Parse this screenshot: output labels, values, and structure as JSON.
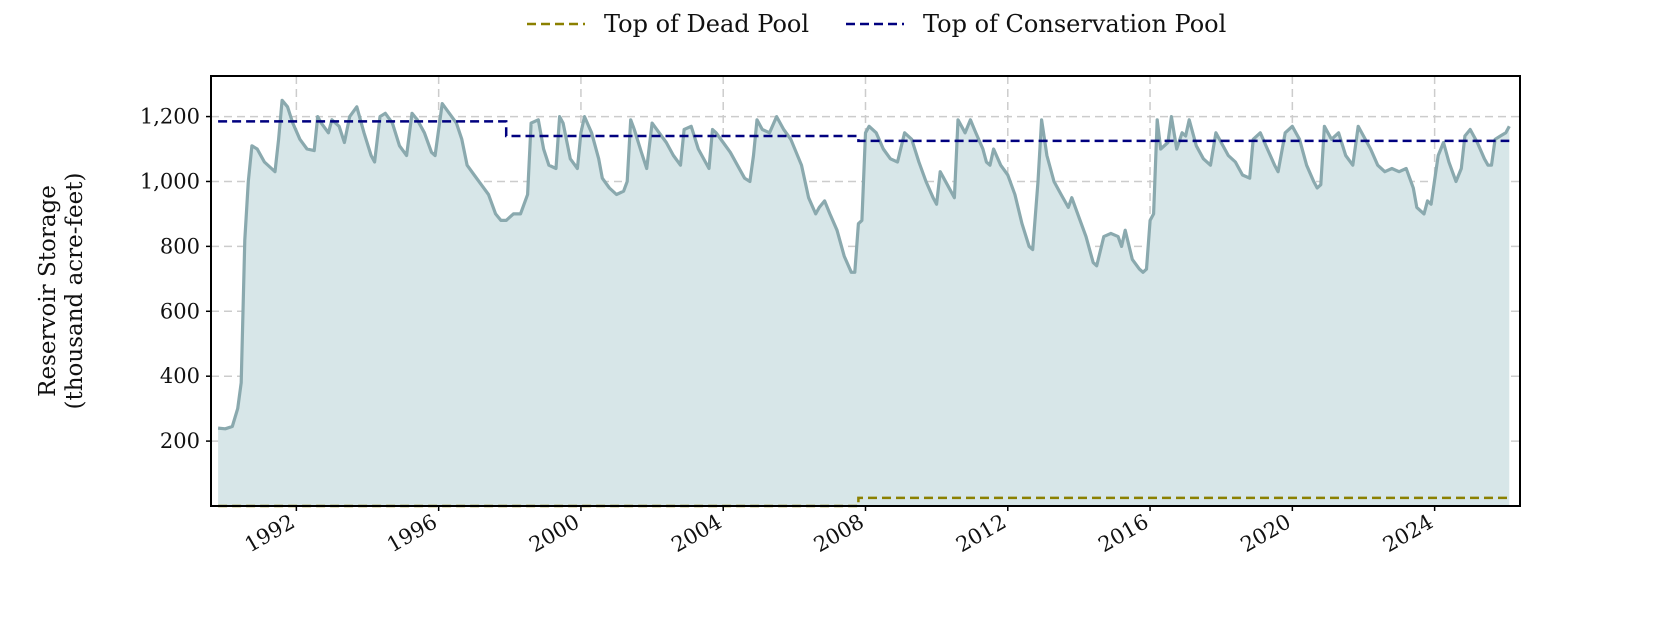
{
  "chart_data": {
    "type": "area",
    "title": "",
    "xlabel": "",
    "ylabel_line1": "Reservoir Storage",
    "ylabel_line2": "(thousand acre-feet)",
    "xlim": [
      1989.6,
      2026.4
    ],
    "ylim": [
      0,
      1325
    ],
    "x_ticks": [
      1992,
      1996,
      2000,
      2004,
      2008,
      2012,
      2016,
      2020,
      2024
    ],
    "x_tick_labels": [
      "1992",
      "1996",
      "2000",
      "2004",
      "2008",
      "2012",
      "2016",
      "2020",
      "2024"
    ],
    "y_ticks": [
      200,
      400,
      600,
      800,
      1000,
      1200
    ],
    "y_tick_labels": [
      "200",
      "400",
      "600",
      "800",
      "1,000",
      "1,200"
    ],
    "grid": true,
    "legend_placement": "top-center",
    "legend": [
      {
        "label": "Top of Dead Pool",
        "color": "#8b8000",
        "style": "dashed"
      },
      {
        "label": "Top of Conservation Pool",
        "color": "#00007f",
        "style": "dashed"
      }
    ],
    "colors": {
      "storage_line": "#8aa9ae",
      "storage_fill": "#d7e6e8",
      "grid": "#cccccc",
      "frame": "#000000"
    },
    "series": [
      {
        "kind": "storage",
        "points": [
          [
            1989.8,
            240
          ],
          [
            1990.0,
            238
          ],
          [
            1990.2,
            245
          ],
          [
            1990.35,
            300
          ],
          [
            1990.45,
            380
          ],
          [
            1990.55,
            820
          ],
          [
            1990.65,
            1000
          ],
          [
            1990.75,
            1110
          ],
          [
            1990.9,
            1100
          ],
          [
            1991.1,
            1060
          ],
          [
            1991.3,
            1040
          ],
          [
            1991.4,
            1030
          ],
          [
            1991.5,
            1130
          ],
          [
            1991.6,
            1250
          ],
          [
            1991.75,
            1230
          ],
          [
            1991.9,
            1180
          ],
          [
            1992.1,
            1130
          ],
          [
            1992.3,
            1100
          ],
          [
            1992.5,
            1095
          ],
          [
            1992.6,
            1200
          ],
          [
            1992.7,
            1180
          ],
          [
            1992.9,
            1150
          ],
          [
            1993.0,
            1190
          ],
          [
            1993.2,
            1170
          ],
          [
            1993.35,
            1120
          ],
          [
            1993.5,
            1200
          ],
          [
            1993.7,
            1230
          ],
          [
            1993.9,
            1150
          ],
          [
            1994.1,
            1080
          ],
          [
            1994.2,
            1060
          ],
          [
            1994.35,
            1200
          ],
          [
            1994.5,
            1210
          ],
          [
            1994.7,
            1180
          ],
          [
            1994.9,
            1110
          ],
          [
            1995.1,
            1080
          ],
          [
            1995.25,
            1210
          ],
          [
            1995.4,
            1190
          ],
          [
            1995.6,
            1150
          ],
          [
            1995.8,
            1090
          ],
          [
            1995.9,
            1080
          ],
          [
            1996.1,
            1240
          ],
          [
            1996.3,
            1210
          ],
          [
            1996.5,
            1180
          ],
          [
            1996.65,
            1130
          ],
          [
            1996.8,
            1050
          ],
          [
            1997.0,
            1020
          ],
          [
            1997.2,
            990
          ],
          [
            1997.4,
            960
          ],
          [
            1997.6,
            900
          ],
          [
            1997.75,
            880
          ],
          [
            1997.9,
            880
          ],
          [
            1998.1,
            900
          ],
          [
            1998.3,
            900
          ],
          [
            1998.5,
            960
          ],
          [
            1998.6,
            1180
          ],
          [
            1998.8,
            1190
          ],
          [
            1998.95,
            1100
          ],
          [
            1999.1,
            1050
          ],
          [
            1999.3,
            1040
          ],
          [
            1999.4,
            1200
          ],
          [
            1999.5,
            1180
          ],
          [
            1999.7,
            1070
          ],
          [
            1999.9,
            1040
          ],
          [
            2000.0,
            1150
          ],
          [
            2000.1,
            1200
          ],
          [
            2000.3,
            1150
          ],
          [
            2000.5,
            1070
          ],
          [
            2000.6,
            1010
          ],
          [
            2000.8,
            980
          ],
          [
            2001.0,
            960
          ],
          [
            2001.2,
            970
          ],
          [
            2001.3,
            1000
          ],
          [
            2001.4,
            1190
          ],
          [
            2001.5,
            1160
          ],
          [
            2001.7,
            1090
          ],
          [
            2001.85,
            1040
          ],
          [
            2002.0,
            1180
          ],
          [
            2002.2,
            1150
          ],
          [
            2002.4,
            1120
          ],
          [
            2002.6,
            1080
          ],
          [
            2002.8,
            1050
          ],
          [
            2002.9,
            1160
          ],
          [
            2003.1,
            1170
          ],
          [
            2003.3,
            1100
          ],
          [
            2003.5,
            1060
          ],
          [
            2003.6,
            1040
          ],
          [
            2003.7,
            1160
          ],
          [
            2003.8,
            1150
          ],
          [
            2004.0,
            1120
          ],
          [
            2004.2,
            1090
          ],
          [
            2004.4,
            1050
          ],
          [
            2004.6,
            1010
          ],
          [
            2004.75,
            1000
          ],
          [
            2004.85,
            1080
          ],
          [
            2004.95,
            1190
          ],
          [
            2005.1,
            1160
          ],
          [
            2005.3,
            1150
          ],
          [
            2005.5,
            1200
          ],
          [
            2005.7,
            1160
          ],
          [
            2005.9,
            1130
          ],
          [
            2006.2,
            1050
          ],
          [
            2006.4,
            950
          ],
          [
            2006.6,
            900
          ],
          [
            2006.7,
            920
          ],
          [
            2006.85,
            940
          ],
          [
            2007.0,
            900
          ],
          [
            2007.2,
            850
          ],
          [
            2007.4,
            770
          ],
          [
            2007.6,
            720
          ],
          [
            2007.7,
            720
          ],
          [
            2007.8,
            870
          ],
          [
            2007.9,
            880
          ],
          [
            2008.0,
            1150
          ],
          [
            2008.1,
            1170
          ],
          [
            2008.3,
            1150
          ],
          [
            2008.5,
            1100
          ],
          [
            2008.7,
            1070
          ],
          [
            2008.9,
            1060
          ],
          [
            2009.1,
            1150
          ],
          [
            2009.3,
            1130
          ],
          [
            2009.5,
            1060
          ],
          [
            2009.7,
            1000
          ],
          [
            2009.9,
            950
          ],
          [
            2010.0,
            930
          ],
          [
            2010.1,
            1030
          ],
          [
            2010.3,
            990
          ],
          [
            2010.5,
            950
          ],
          [
            2010.6,
            1190
          ],
          [
            2010.8,
            1150
          ],
          [
            2010.95,
            1190
          ],
          [
            2011.1,
            1150
          ],
          [
            2011.3,
            1100
          ],
          [
            2011.4,
            1060
          ],
          [
            2011.5,
            1050
          ],
          [
            2011.6,
            1100
          ],
          [
            2011.8,
            1050
          ],
          [
            2012.0,
            1020
          ],
          [
            2012.2,
            960
          ],
          [
            2012.4,
            870
          ],
          [
            2012.6,
            800
          ],
          [
            2012.7,
            790
          ],
          [
            2012.85,
            1000
          ],
          [
            2012.95,
            1190
          ],
          [
            2013.1,
            1080
          ],
          [
            2013.3,
            1000
          ],
          [
            2013.5,
            960
          ],
          [
            2013.7,
            920
          ],
          [
            2013.8,
            950
          ],
          [
            2014.0,
            890
          ],
          [
            2014.2,
            830
          ],
          [
            2014.4,
            750
          ],
          [
            2014.5,
            740
          ],
          [
            2014.7,
            830
          ],
          [
            2014.9,
            840
          ],
          [
            2015.1,
            830
          ],
          [
            2015.2,
            800
          ],
          [
            2015.3,
            850
          ],
          [
            2015.5,
            760
          ],
          [
            2015.7,
            730
          ],
          [
            2015.8,
            720
          ],
          [
            2015.9,
            730
          ],
          [
            2016.0,
            880
          ],
          [
            2016.1,
            900
          ],
          [
            2016.2,
            1190
          ],
          [
            2016.3,
            1100
          ],
          [
            2016.5,
            1120
          ],
          [
            2016.6,
            1200
          ],
          [
            2016.75,
            1100
          ],
          [
            2016.9,
            1150
          ],
          [
            2017.0,
            1140
          ],
          [
            2017.1,
            1190
          ],
          [
            2017.3,
            1110
          ],
          [
            2017.5,
            1070
          ],
          [
            2017.7,
            1050
          ],
          [
            2017.85,
            1150
          ],
          [
            2018.0,
            1120
          ],
          [
            2018.2,
            1080
          ],
          [
            2018.4,
            1060
          ],
          [
            2018.6,
            1020
          ],
          [
            2018.8,
            1010
          ],
          [
            2018.9,
            1130
          ],
          [
            2019.1,
            1150
          ],
          [
            2019.3,
            1100
          ],
          [
            2019.5,
            1050
          ],
          [
            2019.6,
            1030
          ],
          [
            2019.8,
            1150
          ],
          [
            2020.0,
            1170
          ],
          [
            2020.2,
            1130
          ],
          [
            2020.4,
            1050
          ],
          [
            2020.6,
            1000
          ],
          [
            2020.7,
            980
          ],
          [
            2020.8,
            990
          ],
          [
            2020.9,
            1170
          ],
          [
            2021.1,
            1130
          ],
          [
            2021.3,
            1150
          ],
          [
            2021.5,
            1080
          ],
          [
            2021.7,
            1050
          ],
          [
            2021.85,
            1170
          ],
          [
            2022.0,
            1140
          ],
          [
            2022.2,
            1100
          ],
          [
            2022.4,
            1050
          ],
          [
            2022.6,
            1030
          ],
          [
            2022.8,
            1040
          ],
          [
            2023.0,
            1030
          ],
          [
            2023.2,
            1040
          ],
          [
            2023.4,
            980
          ],
          [
            2023.5,
            920
          ],
          [
            2023.7,
            900
          ],
          [
            2023.8,
            940
          ],
          [
            2023.9,
            930
          ],
          [
            2024.1,
            1080
          ],
          [
            2024.25,
            1120
          ],
          [
            2024.4,
            1060
          ],
          [
            2024.5,
            1030
          ],
          [
            2024.6,
            1000
          ],
          [
            2024.75,
            1040
          ],
          [
            2024.85,
            1140
          ],
          [
            2025.0,
            1160
          ],
          [
            2025.2,
            1120
          ],
          [
            2025.4,
            1070
          ],
          [
            2025.5,
            1050
          ],
          [
            2025.6,
            1050
          ],
          [
            2025.7,
            1130
          ],
          [
            2025.85,
            1140
          ],
          [
            2026.0,
            1150
          ],
          [
            2026.1,
            1170
          ]
        ]
      },
      {
        "kind": "conservation_pool",
        "points": [
          [
            1989.8,
            1185
          ],
          [
            1997.9,
            1185
          ],
          [
            1997.9,
            1140
          ],
          [
            2007.8,
            1140
          ],
          [
            2007.8,
            1125
          ],
          [
            2026.1,
            1125
          ]
        ]
      },
      {
        "kind": "dead_pool",
        "points": [
          [
            1989.8,
            0
          ],
          [
            2007.8,
            0
          ],
          [
            2007.8,
            25
          ],
          [
            2026.1,
            25
          ]
        ]
      }
    ]
  }
}
